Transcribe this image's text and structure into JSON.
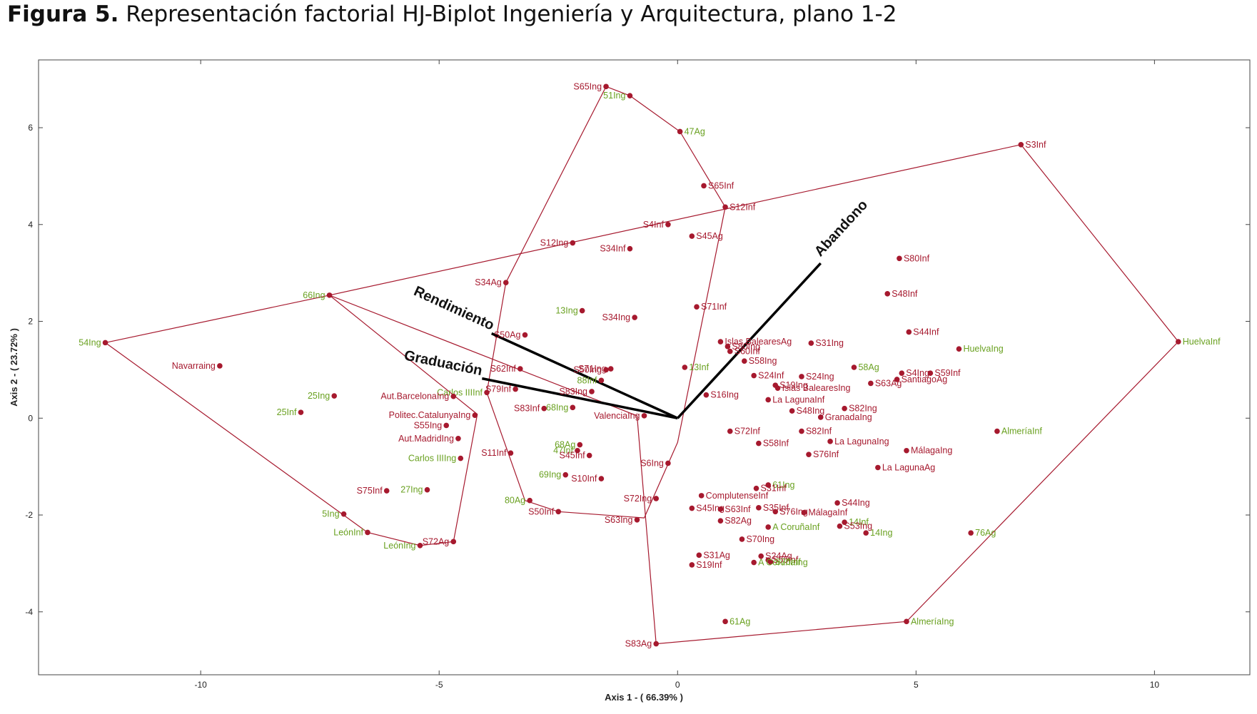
{
  "figure": {
    "label": "Figura 5.",
    "text": "Representación factorial HJ-Biplot Ingeniería y Arquitectura, plano 1-2"
  },
  "colors": {
    "row_point": "#a6192e",
    "column_label": "#6aa121",
    "hull": "#a6192e",
    "vector": "#000000"
  },
  "chart_data": {
    "type": "scatter",
    "title": "",
    "xlabel": "Axis 1 - ( 66.39% )",
    "ylabel": "Axis 2 - ( 23.72% )",
    "xlim": [
      -13.4,
      12.0
    ],
    "ylim": [
      -5.3,
      7.4
    ],
    "xticks": [
      -10,
      -5,
      0,
      5,
      10
    ],
    "yticks": [
      -4,
      -2,
      0,
      2,
      4,
      6
    ],
    "grid": false,
    "vectors": [
      {
        "name": "Abandono",
        "x": 3.0,
        "y": 3.2
      },
      {
        "name": "Rendimiento",
        "x": -3.9,
        "y": 1.75
      },
      {
        "name": "Graduación",
        "x": -4.1,
        "y": 0.82
      }
    ],
    "hulls": [
      [
        [
          -12.0,
          1.56
        ],
        [
          -7.3,
          2.54
        ],
        [
          -4.2,
          0.08
        ],
        [
          -4.7,
          -2.55
        ],
        [
          -5.4,
          -2.63
        ],
        [
          -6.5,
          -2.36
        ],
        [
          -12.0,
          1.56
        ]
      ],
      [
        [
          -1.5,
          6.85
        ],
        [
          -1.0,
          6.66
        ],
        [
          0.05,
          5.92
        ],
        [
          1.0,
          4.36
        ],
        [
          0.0,
          -0.5
        ],
        [
          -0.7,
          -2.06
        ],
        [
          -2.5,
          -1.93
        ],
        [
          -3.2,
          -1.7
        ],
        [
          -4.0,
          0.53
        ],
        [
          -3.6,
          2.8
        ],
        [
          -1.5,
          6.85
        ]
      ],
      [
        [
          7.2,
          5.65
        ],
        [
          10.5,
          1.58
        ],
        [
          4.8,
          -4.2
        ],
        [
          -0.45,
          -4.66
        ],
        [
          -0.85,
          0.05
        ],
        [
          -7.3,
          2.54
        ],
        [
          7.2,
          5.65
        ]
      ]
    ],
    "points": [
      {
        "label": "S65Ing",
        "x": -1.5,
        "y": 6.85,
        "kind": "row"
      },
      {
        "label": "51Ing",
        "x": -1.0,
        "y": 6.66,
        "kind": "col"
      },
      {
        "label": "47Ag",
        "x": 0.05,
        "y": 5.92,
        "kind": "col"
      },
      {
        "label": "S65Inf",
        "x": 0.55,
        "y": 4.8,
        "kind": "row"
      },
      {
        "label": "S12Inf",
        "x": 1.0,
        "y": 4.36,
        "kind": "row"
      },
      {
        "label": "S4Inf",
        "x": -0.2,
        "y": 4.0,
        "kind": "row"
      },
      {
        "label": "S45Ag",
        "x": 0.3,
        "y": 3.76,
        "kind": "row"
      },
      {
        "label": "S12Ing",
        "x": -2.2,
        "y": 3.62,
        "kind": "row"
      },
      {
        "label": "S34Inf",
        "x": -1.0,
        "y": 3.5,
        "kind": "row"
      },
      {
        "label": "S34Ag",
        "x": -3.6,
        "y": 2.8,
        "kind": "row"
      },
      {
        "label": "S71Inf",
        "x": 0.4,
        "y": 2.3,
        "kind": "row"
      },
      {
        "label": "13Ing",
        "x": -2.0,
        "y": 2.22,
        "kind": "col"
      },
      {
        "label": "S34Ing",
        "x": -0.9,
        "y": 2.08,
        "kind": "row"
      },
      {
        "label": "S50Ag",
        "x": -3.2,
        "y": 1.72,
        "kind": "row"
      },
      {
        "label": "Islas BalearesAg",
        "x": 0.9,
        "y": 1.58,
        "kind": "row"
      },
      {
        "label": "S80Ing",
        "x": 1.05,
        "y": 1.48,
        "kind": "row"
      },
      {
        "label": "S60Inf",
        "x": 1.1,
        "y": 1.38,
        "kind": "row"
      },
      {
        "label": "S58Ing",
        "x": 1.4,
        "y": 1.18,
        "kind": "row"
      },
      {
        "label": "S62Inf",
        "x": -3.3,
        "y": 1.02,
        "kind": "row"
      },
      {
        "label": "S50Ing",
        "x": -1.5,
        "y": 1.0,
        "kind": "row"
      },
      {
        "label": "S71Ing",
        "x": -1.4,
        "y": 1.02,
        "kind": "row"
      },
      {
        "label": "13Inf",
        "x": 0.15,
        "y": 1.05,
        "kind": "col"
      },
      {
        "label": "88Inf",
        "x": -1.6,
        "y": 0.78,
        "kind": "col"
      },
      {
        "label": "S83Ing",
        "x": -1.8,
        "y": 0.55,
        "kind": "row"
      },
      {
        "label": "S79Inf",
        "x": -3.4,
        "y": 0.6,
        "kind": "row"
      },
      {
        "label": "Carlos IIIInf",
        "x": -4.0,
        "y": 0.53,
        "kind": "col"
      },
      {
        "label": "S16Ing",
        "x": 0.6,
        "y": 0.48,
        "kind": "row"
      },
      {
        "label": "S83Inf",
        "x": -2.8,
        "y": 0.2,
        "kind": "row"
      },
      {
        "label": "68Ing",
        "x": -2.2,
        "y": 0.22,
        "kind": "col"
      },
      {
        "label": "ValenciaIng",
        "x": -0.7,
        "y": 0.05,
        "kind": "row"
      },
      {
        "label": "S24Inf",
        "x": 1.6,
        "y": 0.88,
        "kind": "row"
      },
      {
        "label": "S24Ing",
        "x": 2.6,
        "y": 0.86,
        "kind": "row"
      },
      {
        "label": "S19Ing",
        "x": 2.05,
        "y": 0.68,
        "kind": "row"
      },
      {
        "label": "Islas BalearesIng",
        "x": 2.1,
        "y": 0.62,
        "kind": "row"
      },
      {
        "label": "La LagunaInf",
        "x": 1.9,
        "y": 0.38,
        "kind": "row"
      },
      {
        "label": "S48Ing",
        "x": 2.4,
        "y": 0.15,
        "kind": "row"
      },
      {
        "label": "S31Ing",
        "x": 2.8,
        "y": 1.55,
        "kind": "row"
      },
      {
        "label": "58Ag",
        "x": 3.7,
        "y": 1.05,
        "kind": "col"
      },
      {
        "label": "S82Ing",
        "x": 3.5,
        "y": 0.2,
        "kind": "row"
      },
      {
        "label": "S63Ag",
        "x": 4.05,
        "y": 0.72,
        "kind": "row"
      },
      {
        "label": "GranadaIng",
        "x": 3.0,
        "y": 0.02,
        "kind": "row"
      },
      {
        "label": "S80Inf",
        "x": 4.65,
        "y": 3.3,
        "kind": "row"
      },
      {
        "label": "S48Inf",
        "x": 4.4,
        "y": 2.57,
        "kind": "row"
      },
      {
        "label": "S44Inf",
        "x": 4.85,
        "y": 1.78,
        "kind": "row"
      },
      {
        "label": "S4Ing",
        "x": 4.7,
        "y": 0.93,
        "kind": "row"
      },
      {
        "label": "S59Inf",
        "x": 5.3,
        "y": 0.93,
        "kind": "row"
      },
      {
        "label": "SantiagoAg",
        "x": 4.6,
        "y": 0.8,
        "kind": "row"
      },
      {
        "label": "HuelvaIng",
        "x": 5.9,
        "y": 1.43,
        "kind": "col"
      },
      {
        "label": "S3Inf",
        "x": 7.2,
        "y": 5.65,
        "kind": "row"
      },
      {
        "label": "HuelvaInf",
        "x": 10.5,
        "y": 1.58,
        "kind": "col"
      },
      {
        "label": "AlmeríaInf",
        "x": 6.7,
        "y": -0.27,
        "kind": "col"
      },
      {
        "label": "S72Inf",
        "x": 1.1,
        "y": -0.27,
        "kind": "row"
      },
      {
        "label": "S82Inf",
        "x": 2.6,
        "y": -0.27,
        "kind": "row"
      },
      {
        "label": "S58Inf",
        "x": 1.7,
        "y": -0.52,
        "kind": "row"
      },
      {
        "label": "La LagunaIng",
        "x": 3.2,
        "y": -0.48,
        "kind": "row"
      },
      {
        "label": "MálagaIng",
        "x": 4.8,
        "y": -0.67,
        "kind": "row"
      },
      {
        "label": "S76Inf",
        "x": 2.75,
        "y": -0.75,
        "kind": "row"
      },
      {
        "label": "La LagunaAg",
        "x": 4.2,
        "y": -1.02,
        "kind": "row"
      },
      {
        "label": "Navarraing",
        "x": -9.6,
        "y": 1.08,
        "kind": "row"
      },
      {
        "label": "54Ing",
        "x": -12.0,
        "y": 1.56,
        "kind": "col"
      },
      {
        "label": "66Ing",
        "x": -7.3,
        "y": 2.54,
        "kind": "col"
      },
      {
        "label": "25Ing",
        "x": -7.2,
        "y": 0.46,
        "kind": "col"
      },
      {
        "label": "25Inf",
        "x": -7.9,
        "y": 0.12,
        "kind": "col"
      },
      {
        "label": "Aut.BarcelonaIng",
        "x": -4.7,
        "y": 0.45,
        "kind": "row"
      },
      {
        "label": "Politec.CatalunyaIng",
        "x": -4.25,
        "y": 0.06,
        "kind": "row"
      },
      {
        "label": "S55Ing",
        "x": -4.85,
        "y": -0.15,
        "kind": "row"
      },
      {
        "label": "Aut.MadridIng",
        "x": -4.6,
        "y": -0.42,
        "kind": "row"
      },
      {
        "label": "Carlos IIIIng",
        "x": -4.55,
        "y": -0.83,
        "kind": "col"
      },
      {
        "label": "S75Inf",
        "x": -6.1,
        "y": -1.5,
        "kind": "row"
      },
      {
        "label": "27Ing",
        "x": -5.25,
        "y": -1.48,
        "kind": "col"
      },
      {
        "label": "5Ing",
        "x": -7.0,
        "y": -1.98,
        "kind": "col"
      },
      {
        "label": "LeónInf",
        "x": -6.5,
        "y": -2.36,
        "kind": "col"
      },
      {
        "label": "LeónIng",
        "x": -5.4,
        "y": -2.63,
        "kind": "col"
      },
      {
        "label": "S72Ag",
        "x": -4.7,
        "y": -2.55,
        "kind": "row"
      },
      {
        "label": "S11Inf",
        "x": -3.5,
        "y": -0.72,
        "kind": "row"
      },
      {
        "label": "68Ag",
        "x": -2.05,
        "y": -0.55,
        "kind": "col"
      },
      {
        "label": "47Inf",
        "x": -2.1,
        "y": -0.67,
        "kind": "col"
      },
      {
        "label": "S45Inf",
        "x": -1.85,
        "y": -0.77,
        "kind": "row"
      },
      {
        "label": "S10Inf",
        "x": -1.6,
        "y": -1.25,
        "kind": "row"
      },
      {
        "label": "69Ing",
        "x": -2.35,
        "y": -1.17,
        "kind": "col"
      },
      {
        "label": "80Ag",
        "x": -3.1,
        "y": -1.7,
        "kind": "col"
      },
      {
        "label": "S50Inf",
        "x": -2.5,
        "y": -1.93,
        "kind": "row"
      },
      {
        "label": "S6Ing",
        "x": -0.2,
        "y": -0.93,
        "kind": "row"
      },
      {
        "label": "ComplutenseInf",
        "x": 0.5,
        "y": -1.6,
        "kind": "row"
      },
      {
        "label": "S72Ing",
        "x": -0.45,
        "y": -1.66,
        "kind": "row"
      },
      {
        "label": "S45Ing",
        "x": 0.3,
        "y": -1.86,
        "kind": "row"
      },
      {
        "label": "S63Ing",
        "x": -0.85,
        "y": -2.1,
        "kind": "row"
      },
      {
        "label": "S82Ag",
        "x": 0.9,
        "y": -2.12,
        "kind": "row"
      },
      {
        "label": "S63Inf",
        "x": 0.9,
        "y": -1.88,
        "kind": "row"
      },
      {
        "label": "61Ing",
        "x": 1.9,
        "y": -1.38,
        "kind": "col"
      },
      {
        "label": "S31Inf",
        "x": 1.65,
        "y": -1.45,
        "kind": "row"
      },
      {
        "label": "S35Inf",
        "x": 1.7,
        "y": -1.85,
        "kind": "row"
      },
      {
        "label": "S76Ing",
        "x": 2.05,
        "y": -1.93,
        "kind": "row"
      },
      {
        "label": "S44Ing",
        "x": 3.35,
        "y": -1.75,
        "kind": "row"
      },
      {
        "label": "MálagaInf",
        "x": 2.65,
        "y": -1.95,
        "kind": "row"
      },
      {
        "label": "14Inf",
        "x": 3.5,
        "y": -2.15,
        "kind": "col"
      },
      {
        "label": "A CoruñaInf",
        "x": 1.9,
        "y": -2.25,
        "kind": "col"
      },
      {
        "label": "S53Ing",
        "x": 3.4,
        "y": -2.23,
        "kind": "row"
      },
      {
        "label": "14Ing",
        "x": 3.95,
        "y": -2.37,
        "kind": "col"
      },
      {
        "label": "S70Ing",
        "x": 1.35,
        "y": -2.5,
        "kind": "row"
      },
      {
        "label": "76Ag",
        "x": 6.15,
        "y": -2.37,
        "kind": "col"
      },
      {
        "label": "S31Ag",
        "x": 0.45,
        "y": -2.83,
        "kind": "row"
      },
      {
        "label": "S24Ag",
        "x": 1.75,
        "y": -2.85,
        "kind": "row"
      },
      {
        "label": "S55Inf",
        "x": 1.9,
        "y": -2.93,
        "kind": "row"
      },
      {
        "label": "S70Inf",
        "x": 1.95,
        "y": -2.97,
        "kind": "col"
      },
      {
        "label": "S19Inf",
        "x": 0.3,
        "y": -3.03,
        "kind": "row"
      },
      {
        "label": "A CoruñaIng",
        "x": 1.6,
        "y": -2.98,
        "kind": "col"
      },
      {
        "label": "61Ag",
        "x": 1.0,
        "y": -4.2,
        "kind": "col"
      },
      {
        "label": "AlmeríaIng",
        "x": 4.8,
        "y": -4.2,
        "kind": "col"
      },
      {
        "label": "S83Ag",
        "x": -0.45,
        "y": -4.66,
        "kind": "row"
      }
    ]
  }
}
